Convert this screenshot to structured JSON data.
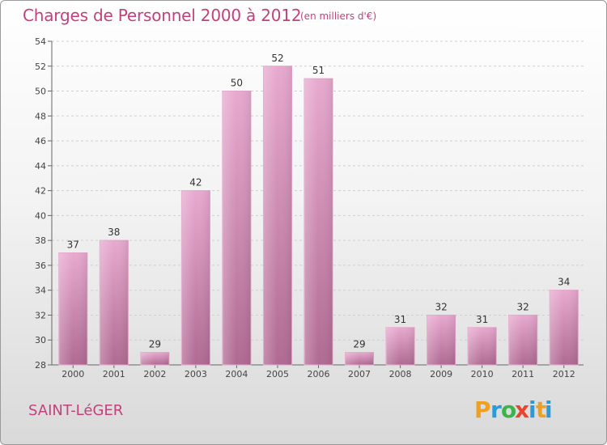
{
  "title": "Charges de Personnel 2000 à 2012",
  "unit": "(en milliers d'€)",
  "place": "SAINT-LéGER",
  "logo": {
    "letters": [
      "P",
      "r",
      "o",
      "x",
      "i",
      "t",
      "i"
    ],
    "colors": [
      "#f0a020",
      "#2a9bd6",
      "#3ab54a",
      "#e8442e",
      "#2a9bd6",
      "#f0a020",
      "#2a9bd6"
    ]
  },
  "chart_data": {
    "type": "bar",
    "categories": [
      "2000",
      "2001",
      "2002",
      "2003",
      "2004",
      "2005",
      "2006",
      "2007",
      "2008",
      "2009",
      "2010",
      "2011",
      "2012"
    ],
    "values": [
      37,
      38,
      29,
      42,
      50,
      52,
      51,
      29,
      31,
      32,
      31,
      32,
      34
    ],
    "ylim": [
      28,
      54
    ],
    "yticks": [
      28,
      30,
      32,
      34,
      36,
      38,
      40,
      42,
      44,
      46,
      48,
      50,
      52,
      54
    ],
    "grid": "horizontal dashed",
    "bar_color": "#c0709c"
  }
}
